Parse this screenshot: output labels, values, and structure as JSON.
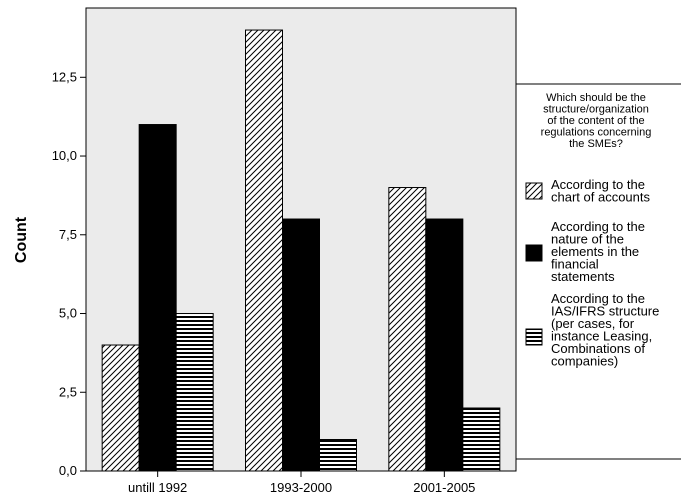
{
  "chart_data": {
    "type": "bar",
    "categories": [
      "untill 1992",
      "1993-2000",
      "2001-2005"
    ],
    "series": [
      {
        "name": "According to the chart of accounts",
        "legend_lines": [
          "According to the",
          "chart of accounts"
        ],
        "pattern": "diagonal-hatch",
        "values": [
          4,
          14,
          9
        ]
      },
      {
        "name": "According to the nature of the elements in the financial statements",
        "legend_lines": [
          "According to the",
          "nature of the",
          "elements in the",
          "financial",
          "statements"
        ],
        "pattern": "solid-black",
        "values": [
          11,
          8,
          8
        ]
      },
      {
        "name": "According to the IAS/IFRS structure (per cases, for instance Leasing, Combinations of companies)",
        "legend_lines": [
          "According to the",
          "IAS/IFRS structure",
          "(per cases, for",
          "instance Leasing,",
          "Combinations of",
          "companies)"
        ],
        "pattern": "horizontal-lines",
        "values": [
          5,
          1,
          2
        ]
      }
    ],
    "ylabel": "Count",
    "xlabel": "",
    "ylim": [
      0,
      14.7
    ],
    "yticks": [
      0,
      2.5,
      5,
      7.5,
      10,
      12.5
    ],
    "ytick_labels": [
      "0,0",
      "2,5",
      "5,0",
      "7,5",
      "10,0",
      "12,5"
    ],
    "legend": {
      "title_lines": [
        "Which should be the",
        "structure/organization",
        "of the content of the",
        "regulations concerning",
        "the SMEs?"
      ],
      "placement": "right"
    },
    "plot_background": "#ebebeb",
    "grid": false
  }
}
